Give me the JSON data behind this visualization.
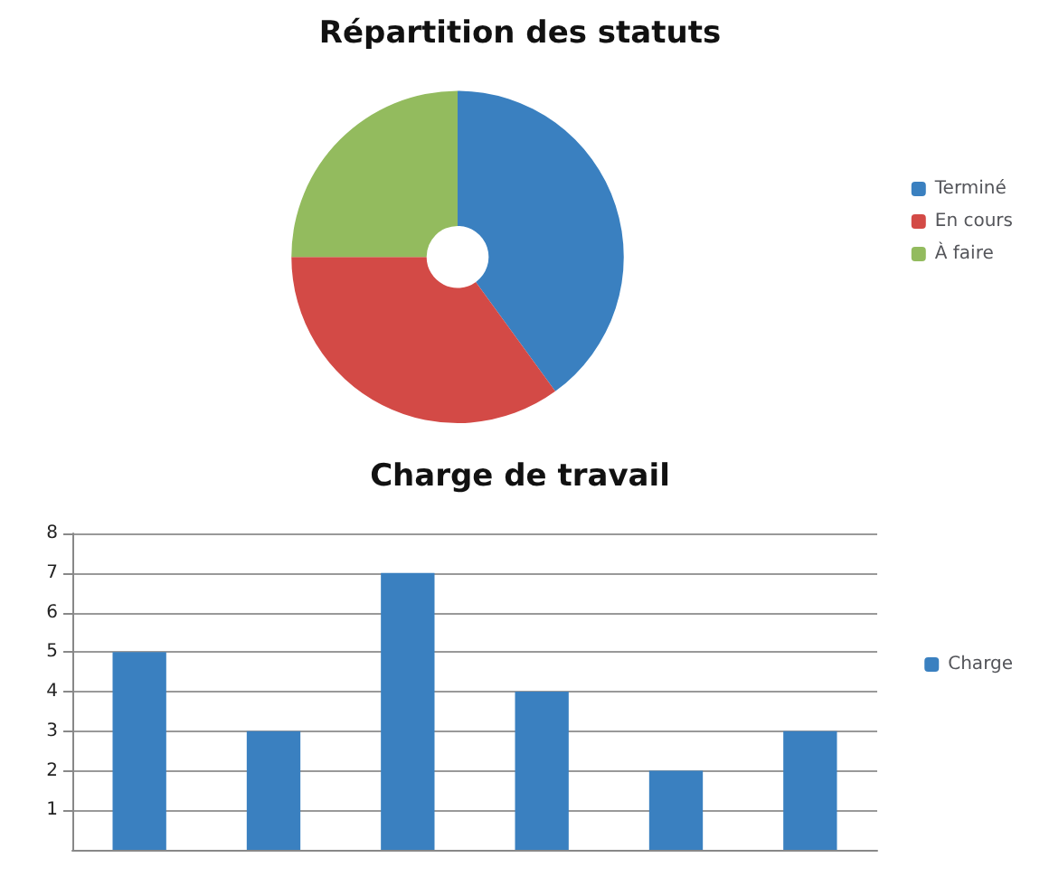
{
  "chart_data": [
    {
      "type": "donut",
      "title": "Répartition des statuts",
      "categories": [
        "Terminé",
        "En cours",
        "À faire"
      ],
      "values": [
        40,
        35,
        25
      ],
      "colors": [
        "#3a80c0",
        "#d34a46",
        "#93bb5e"
      ],
      "legend": "right"
    },
    {
      "type": "bar",
      "title": "Charge de travail",
      "categories": [
        null,
        null,
        null,
        null,
        null,
        null
      ],
      "series": [
        {
          "name": "Charge",
          "color": "#3a80c0",
          "values": [
            5,
            3,
            7,
            4,
            2,
            3
          ]
        }
      ],
      "ylim": [
        0,
        8
      ],
      "yticks": [
        1,
        2,
        3,
        4,
        5,
        6,
        7,
        8
      ],
      "grid": "y",
      "legend": "right"
    }
  ]
}
